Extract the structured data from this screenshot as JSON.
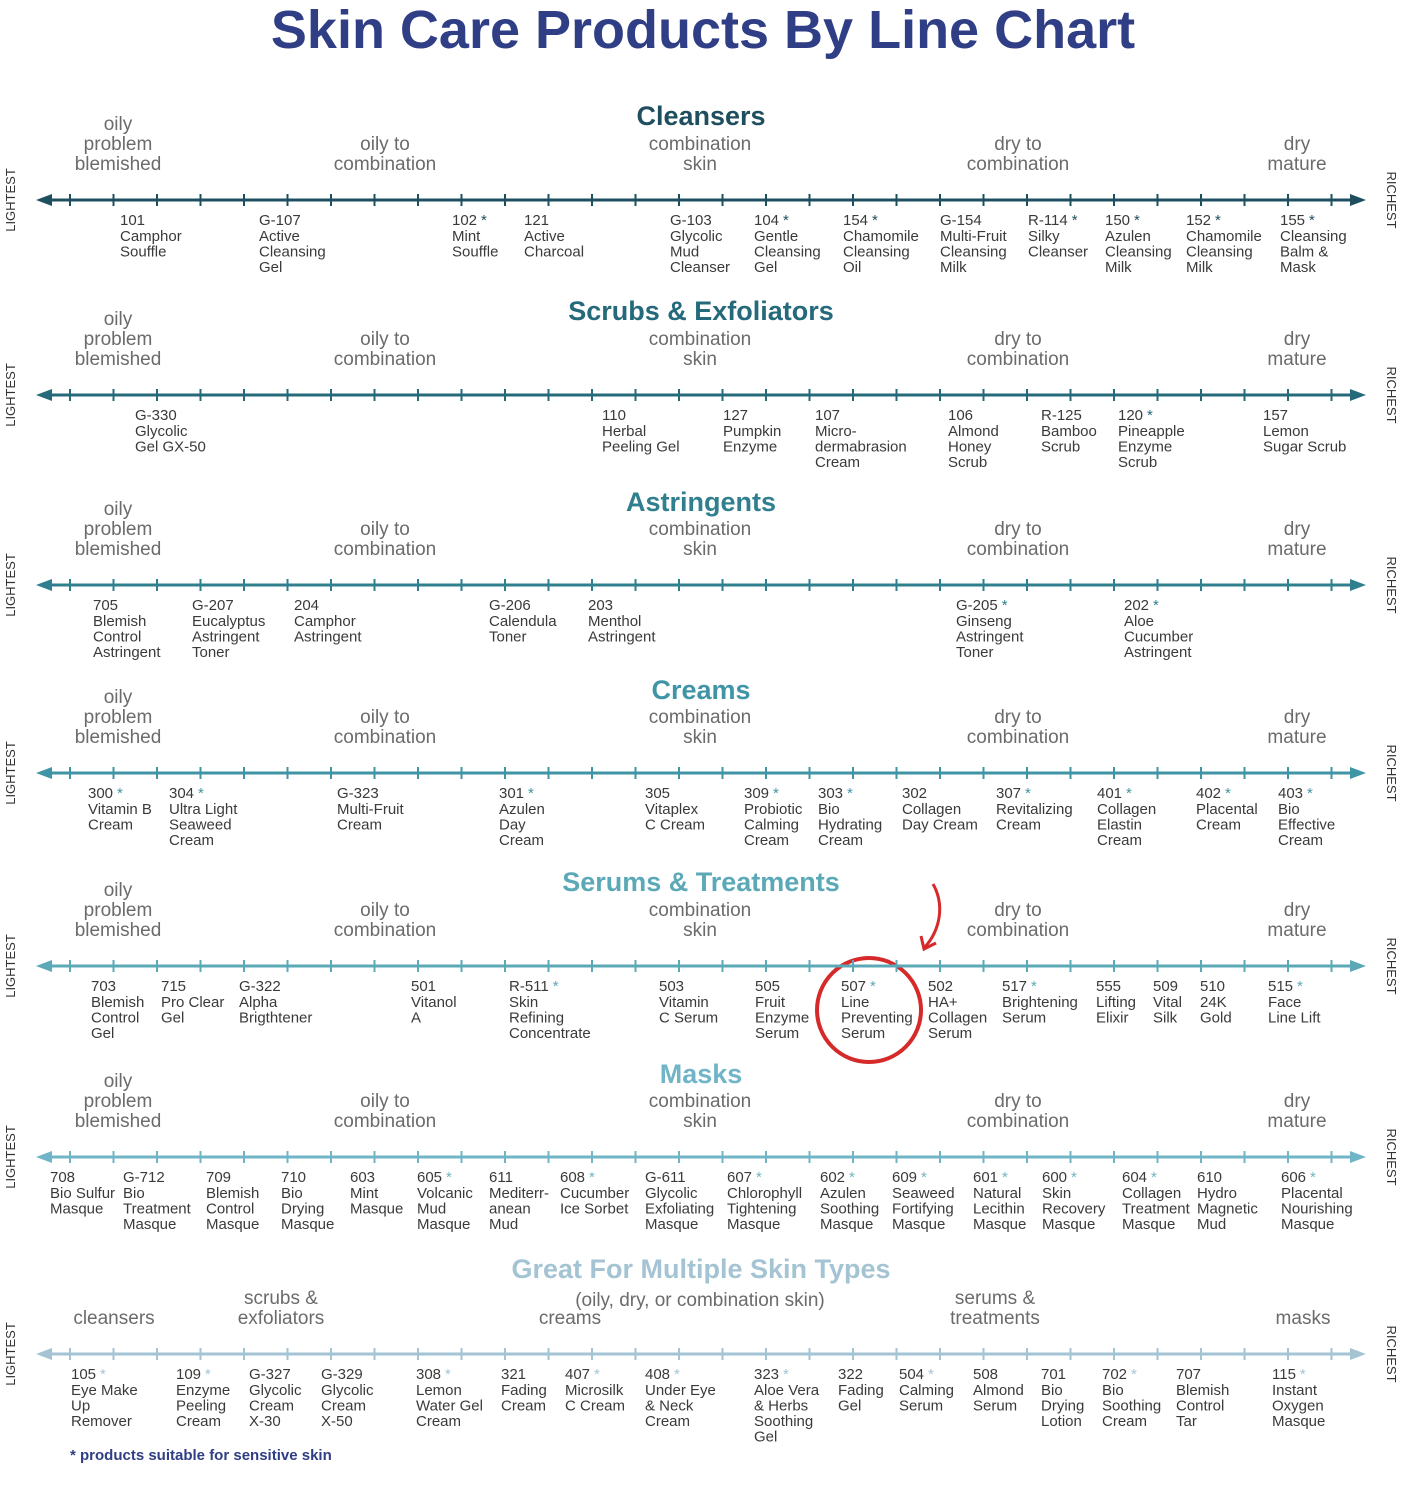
{
  "title": "Skin Care Products By Line Chart",
  "axis_ends": {
    "lightest": "LIGHTEST",
    "richest": "RICHEST"
  },
  "skin_scale": [
    [
      "oily",
      "problem",
      "blemished"
    ],
    [
      "oily to",
      "combination"
    ],
    [
      "combination",
      "skin"
    ],
    [
      "dry to",
      "combination"
    ],
    [
      "dry",
      "mature"
    ]
  ],
  "sections": [
    {
      "heading": "Cleansers",
      "products": [
        {
          "code": "101",
          "name": [
            "Camphor",
            "Souffle"
          ]
        },
        {
          "code": "G-107",
          "name": [
            "Active",
            "Cleansing",
            "Gel"
          ]
        },
        {
          "code": "102",
          "mark": "*",
          "name": [
            "Mint",
            "Souffle"
          ]
        },
        {
          "code": "121",
          "name": [
            "Active",
            "Charcoal"
          ]
        },
        {
          "code": "G-103",
          "name": [
            "Glycolic",
            "Mud",
            "Cleanser"
          ]
        },
        {
          "code": "104",
          "mark": "*",
          "name": [
            "Gentle",
            "Cleansing",
            "Gel"
          ]
        },
        {
          "code": "154",
          "mark": "*",
          "name": [
            "Chamomile",
            "Cleansing",
            "Oil"
          ]
        },
        {
          "code": "G-154",
          "name": [
            "Multi-Fruit",
            "Cleansing",
            "Milk"
          ]
        },
        {
          "code": "R-114",
          "mark": "*",
          "name": [
            "Silky",
            "Cleanser"
          ]
        },
        {
          "code": "150",
          "mark": "*",
          "name": [
            "Azulen",
            "Cleansing",
            "Milk"
          ]
        },
        {
          "code": "152",
          "mark": "*",
          "name": [
            "Chamomile",
            "Cleansing",
            "Milk"
          ]
        },
        {
          "code": "155",
          "mark": "*",
          "name": [
            "Cleansing",
            "Balm &",
            "Mask"
          ]
        }
      ]
    },
    {
      "heading": "Scrubs & Exfoliators",
      "products": [
        {
          "code": "G-330",
          "name": [
            "Glycolic",
            "Gel GX-50"
          ]
        },
        {
          "code": "110",
          "name": [
            "Herbal",
            "Peeling Gel"
          ]
        },
        {
          "code": "127",
          "name": [
            "Pumpkin",
            "Enzyme"
          ]
        },
        {
          "code": "107",
          "name": [
            "Micro-",
            "dermabrasion",
            "Cream"
          ]
        },
        {
          "code": "106",
          "name": [
            "Almond",
            "Honey",
            "Scrub"
          ]
        },
        {
          "code": "R-125",
          "name": [
            "Bamboo",
            "Scrub"
          ]
        },
        {
          "code": "120",
          "mark": "*",
          "name": [
            "Pineapple",
            "Enzyme",
            "Scrub"
          ]
        },
        {
          "code": "157",
          "name": [
            "Lemon",
            "Sugar Scrub"
          ]
        }
      ]
    },
    {
      "heading": "Astringents",
      "products": [
        {
          "code": "705",
          "name": [
            "Blemish",
            "Control",
            "Astringent"
          ]
        },
        {
          "code": "G-207",
          "name": [
            "Eucalyptus",
            "Astringent",
            "Toner"
          ]
        },
        {
          "code": "204",
          "name": [
            "Camphor",
            "Astringent"
          ]
        },
        {
          "code": "G-206",
          "name": [
            "Calendula",
            "Toner"
          ]
        },
        {
          "code": "203",
          "name": [
            "Menthol",
            "Astringent"
          ]
        },
        {
          "code": "G-205",
          "mark": "*",
          "name": [
            "Ginseng",
            "Astringent",
            "Toner"
          ]
        },
        {
          "code": "202",
          "mark": "*",
          "name": [
            "Aloe",
            "Cucumber",
            "Astringent"
          ]
        }
      ]
    },
    {
      "heading": "Creams",
      "products": [
        {
          "code": "300",
          "mark": "*",
          "name": [
            "Vitamin B",
            "Cream"
          ]
        },
        {
          "code": "304",
          "mark": "*",
          "name": [
            "Ultra Light",
            "Seaweed",
            "Cream"
          ]
        },
        {
          "code": "G-323",
          "name": [
            "Multi-Fruit",
            "Cream"
          ]
        },
        {
          "code": "301",
          "mark": "*",
          "name": [
            "Azulen",
            "Day",
            "Cream"
          ]
        },
        {
          "code": "305",
          "name": [
            "Vitaplex",
            "C Cream"
          ]
        },
        {
          "code": "309",
          "mark": "*",
          "name": [
            "Probiotic",
            "Calming",
            "Cream"
          ]
        },
        {
          "code": "303",
          "mark": "*",
          "name": [
            "Bio",
            "Hydrating",
            "Cream"
          ]
        },
        {
          "code": "302",
          "name": [
            "Collagen",
            "Day Cream"
          ]
        },
        {
          "code": "307",
          "mark": "*",
          "name": [
            "Revitalizing",
            "Cream"
          ]
        },
        {
          "code": "401",
          "mark": "*",
          "name": [
            "Collagen",
            "Elastin",
            "Cream"
          ]
        },
        {
          "code": "402",
          "mark": "*",
          "name": [
            "Placental",
            "Cream"
          ]
        },
        {
          "code": "403",
          "mark": "*",
          "name": [
            "Bio",
            "Effective",
            "Cream"
          ]
        }
      ]
    },
    {
      "heading": "Serums & Treatments",
      "products": [
        {
          "code": "703",
          "name": [
            "Blemish",
            "Control",
            "Gel"
          ]
        },
        {
          "code": "715",
          "name": [
            "Pro Clear",
            "Gel"
          ]
        },
        {
          "code": "G-322",
          "name": [
            "Alpha",
            "Brigthtener"
          ]
        },
        {
          "code": "501",
          "name": [
            "Vitanol",
            "A"
          ]
        },
        {
          "code": "R-511",
          "mark": "*",
          "name": [
            "Skin",
            "Refining",
            "Concentrate"
          ]
        },
        {
          "code": "503",
          "name": [
            "Vitamin",
            "C Serum"
          ]
        },
        {
          "code": "505",
          "name": [
            "Fruit",
            "Enzyme",
            "Serum"
          ]
        },
        {
          "code": "507",
          "mark": "*",
          "name": [
            "Line",
            "Preventing",
            "Serum"
          ]
        },
        {
          "code": "502",
          "name": [
            "HA+",
            "Collagen",
            "Serum"
          ]
        },
        {
          "code": "517",
          "mark": "*",
          "name": [
            "Brightening",
            "Serum"
          ]
        },
        {
          "code": "555",
          "name": [
            "Lifting",
            "Elixir"
          ]
        },
        {
          "code": "509",
          "name": [
            "Vital",
            "Silk"
          ]
        },
        {
          "code": "510",
          "name": [
            "24K",
            "Gold"
          ]
        },
        {
          "code": "515",
          "mark": "*",
          "name": [
            "Face",
            "Line Lift"
          ]
        }
      ]
    },
    {
      "heading": "Masks",
      "products": [
        {
          "code": "708",
          "name": [
            "Bio Sulfur",
            "Masque"
          ]
        },
        {
          "code": "G-712",
          "name": [
            "Bio",
            "Treatment",
            "Masque"
          ]
        },
        {
          "code": "709",
          "name": [
            "Blemish",
            "Control",
            "Masque"
          ]
        },
        {
          "code": "710",
          "name": [
            "Bio",
            "Drying",
            "Masque"
          ]
        },
        {
          "code": "603",
          "name": [
            "Mint",
            "Masque"
          ]
        },
        {
          "code": "605",
          "mark": "*",
          "name": [
            "Volcanic",
            "Mud",
            "Masque"
          ]
        },
        {
          "code": "611",
          "name": [
            "Mediterr-",
            "anean",
            "Mud"
          ]
        },
        {
          "code": "608",
          "mark": "*",
          "name": [
            "Cucumber",
            "Ice Sorbet"
          ]
        },
        {
          "code": "G-611",
          "name": [
            "Glycolic",
            "Exfoliating",
            "Masque"
          ]
        },
        {
          "code": "607",
          "mark": "*",
          "name": [
            "Chlorophyll",
            "Tightening",
            "Masque"
          ]
        },
        {
          "code": "602",
          "mark": "*",
          "name": [
            "Azulen",
            "Soothing",
            "Masque"
          ]
        },
        {
          "code": "609",
          "mark": "*",
          "name": [
            "Seaweed",
            "Fortifying",
            "Masque"
          ]
        },
        {
          "code": "601",
          "mark": "*",
          "name": [
            "Natural",
            "Lecithin",
            "Masque"
          ]
        },
        {
          "code": "600",
          "mark": "*",
          "name": [
            "Skin",
            "Recovery",
            "Masque"
          ]
        },
        {
          "code": "604",
          "mark": "*",
          "name": [
            "Collagen",
            "Treatment",
            "Masque"
          ]
        },
        {
          "code": "610",
          "name": [
            "Hydro",
            "Magnetic",
            "Mud"
          ]
        },
        {
          "code": "606",
          "mark": "*",
          "name": [
            "Placental",
            "Nourishing",
            "Masque"
          ]
        }
      ]
    },
    {
      "heading": "Great For Multiple Skin Types",
      "subtitle": "(oily, dry, or combination skin)",
      "scale": [
        [
          "cleansers"
        ],
        [
          "scrubs &",
          "exfoliators"
        ],
        [
          "creams"
        ],
        [
          "serums &",
          "treatments"
        ],
        [
          "masks"
        ]
      ],
      "products": [
        {
          "code": "105",
          "mark": "*",
          "name": [
            "Eye Make",
            "Up",
            "Remover"
          ]
        },
        {
          "code": "109",
          "mark": "*",
          "name": [
            "Enzyme",
            "Peeling",
            "Cream"
          ]
        },
        {
          "code": "G-327",
          "name": [
            "Glycolic",
            "Cream",
            "X-30"
          ]
        },
        {
          "code": "G-329",
          "name": [
            "Glycolic",
            "Cream",
            "X-50"
          ]
        },
        {
          "code": "308",
          "mark": "*",
          "name": [
            "Lemon",
            "Water Gel",
            "Cream"
          ]
        },
        {
          "code": "321",
          "name": [
            "Fading",
            "Cream"
          ]
        },
        {
          "code": "407",
          "mark": "*",
          "name": [
            "Microsilk",
            "C Cream"
          ]
        },
        {
          "code": "408",
          "mark": "*",
          "name": [
            "Under Eye",
            "& Neck",
            "Cream"
          ]
        },
        {
          "code": "323",
          "mark": "*",
          "name": [
            "Aloe Vera",
            "& Herbs",
            "Soothing",
            "Gel"
          ]
        },
        {
          "code": "322",
          "name": [
            "Fading",
            "Gel"
          ]
        },
        {
          "code": "504",
          "mark": "*",
          "name": [
            "Calming",
            "Serum"
          ]
        },
        {
          "code": "508",
          "name": [
            "Almond",
            "Serum"
          ]
        },
        {
          "code": "701",
          "name": [
            "Bio",
            "Drying",
            "Lotion"
          ]
        },
        {
          "code": "702",
          "mark": "*",
          "name": [
            "Bio",
            "Soothing",
            "Cream"
          ]
        },
        {
          "code": "707",
          "name": [
            "Blemish",
            "Control",
            "Tar"
          ]
        },
        {
          "code": "115",
          "mark": "*",
          "name": [
            "Instant",
            "Oxygen",
            "Masque"
          ]
        }
      ]
    }
  ],
  "footnote": "* products suitable for sensitive skin"
}
